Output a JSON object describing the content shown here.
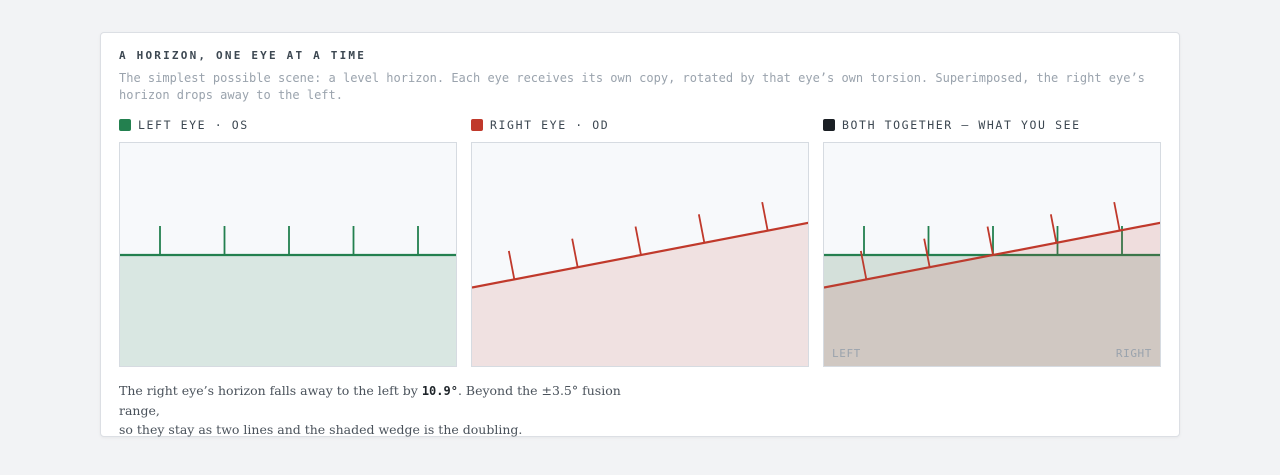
{
  "header": {
    "title": "A HORIZON, ONE EYE AT A TIME",
    "subtitle": "The simplest possible scene: a level horizon. Each eye receives its own copy, rotated by that eye’s own torsion. Superimposed, the right eye’s horizon drops away to the left."
  },
  "colors": {
    "left_eye": "#23804f",
    "right_eye": "#c0392b",
    "both": "#1a1f24"
  },
  "panels": {
    "left": {
      "label": "LEFT EYE · OS",
      "torsion_deg": 0
    },
    "right": {
      "label": "RIGHT EYE · OD",
      "torsion_deg": 10.9
    },
    "both": {
      "label": "BOTH TOGETHER — WHAT YOU SEE",
      "corner_left": "LEFT",
      "corner_right": "RIGHT"
    }
  },
  "caption": {
    "before": "The right eye’s horizon falls away to the left by ",
    "value": "10.9°",
    "after": ". Beyond the ±3.5° fusion range,",
    "line2": "so they stay as two lines and the shaded wedge is the doubling."
  }
}
